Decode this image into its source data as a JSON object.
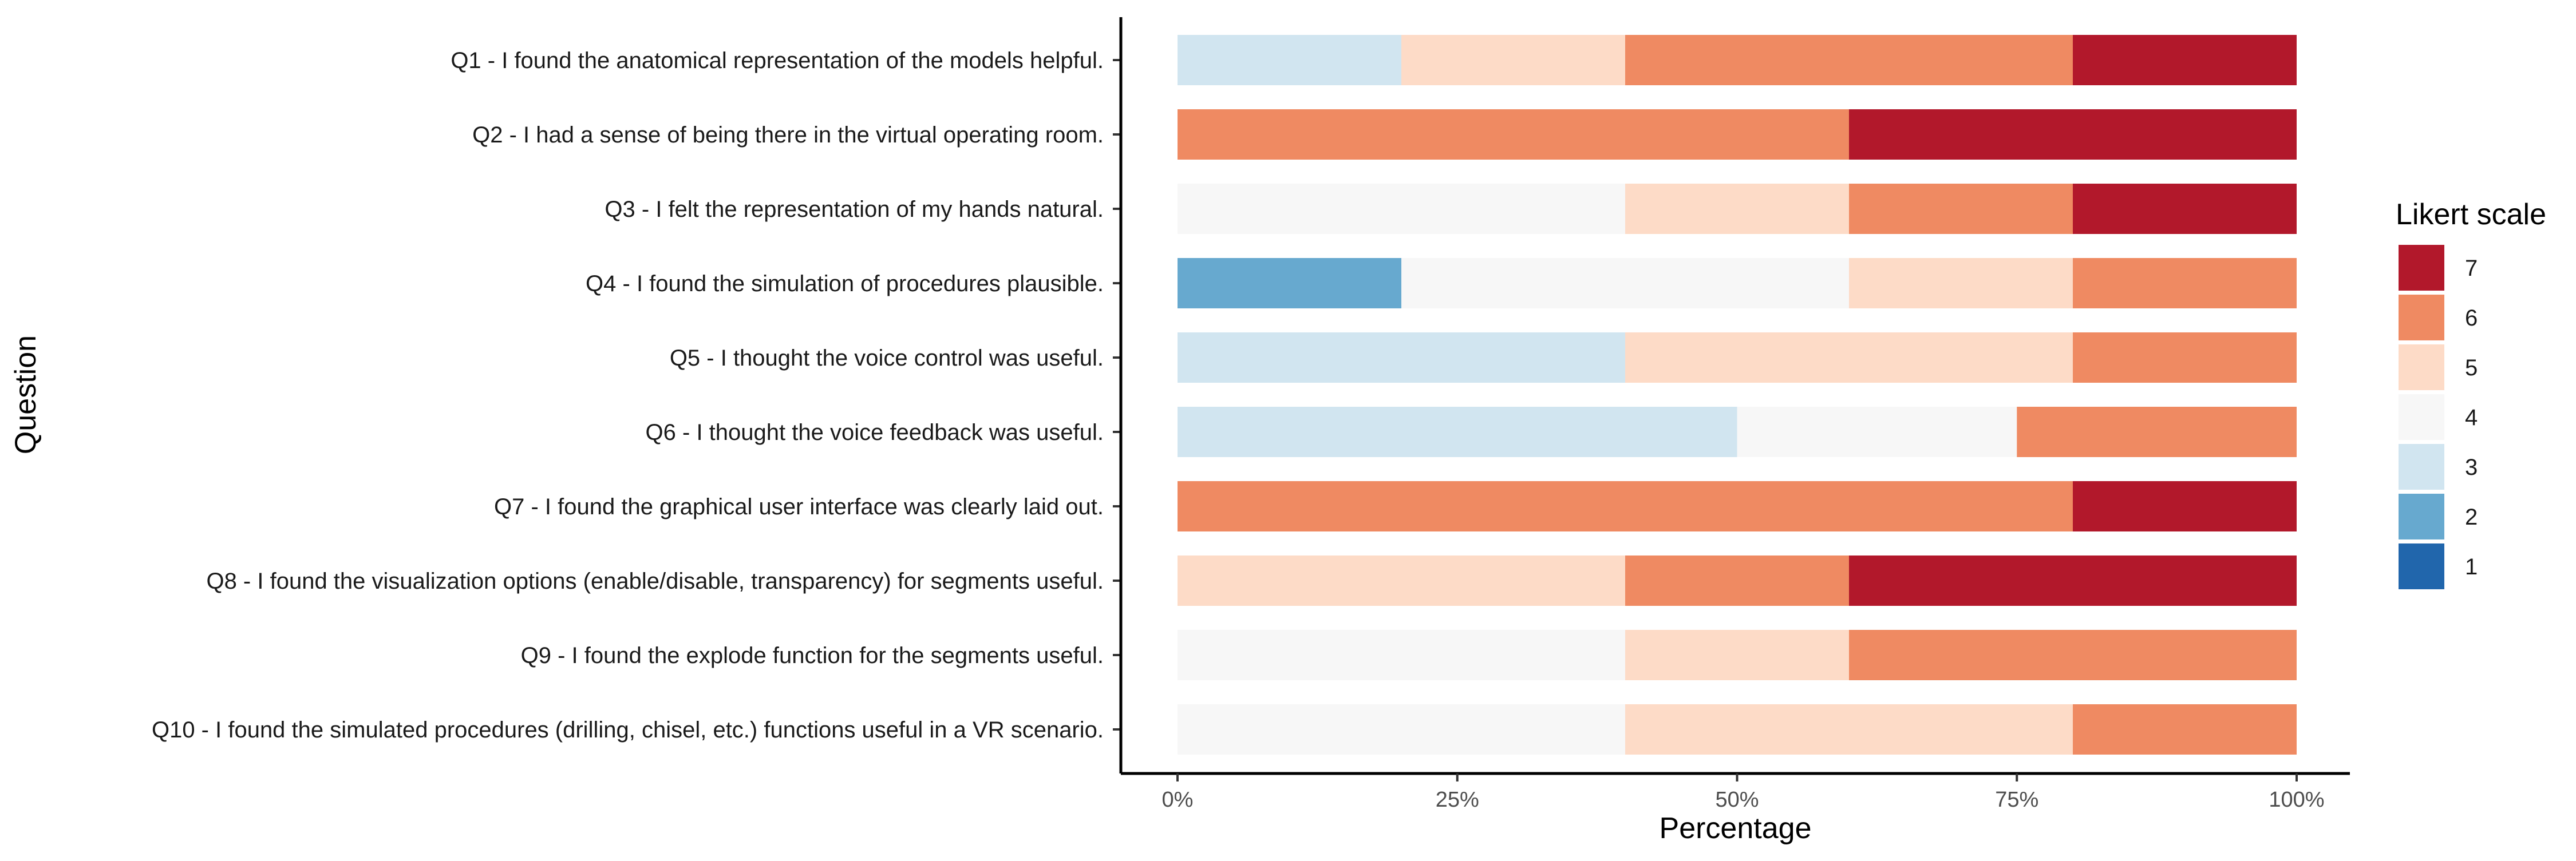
{
  "chart_data": {
    "type": "bar",
    "orientation": "horizontal",
    "stacked": true,
    "xlabel": "Percentage",
    "ylabel": "Question",
    "xlim": [
      0,
      100
    ],
    "xticks": [
      0,
      25,
      50,
      75,
      100
    ],
    "xtick_labels": [
      "0%",
      "25%",
      "50%",
      "75%",
      "100%"
    ],
    "grid": false,
    "legend": {
      "title": "Likert scale",
      "position": "right",
      "entries": [
        {
          "label": "7",
          "color": "#b2182b"
        },
        {
          "label": "6",
          "color": "#ef8a62"
        },
        {
          "label": "5",
          "color": "#fddbc7"
        },
        {
          "label": "4",
          "color": "#f7f7f7"
        },
        {
          "label": "3",
          "color": "#d1e5f0"
        },
        {
          "label": "2",
          "color": "#67a9cf"
        },
        {
          "label": "1",
          "color": "#2166ac"
        }
      ]
    },
    "categories": [
      "Q1 - I found the anatomical representation of the models helpful.",
      "Q2 - I had a sense of being there in the virtual operating room.",
      "Q3 - I felt the representation of my hands natural.",
      "Q4 - I found the simulation of procedures plausible.",
      "Q5 - I thought the voice control was useful.",
      "Q6 - I thought the voice feedback was useful.",
      "Q7 - I found the graphical user interface was clearly laid out.",
      "Q8 - I found the visualization options (enable/disable, transparency) for segments useful.",
      "Q9 - I found the explode function for the segments useful.",
      "Q10 - I found the simulated procedures (drilling, chisel, etc.) functions useful in a VR scenario."
    ],
    "series": [
      {
        "name": "1",
        "color": "#2166ac",
        "values": [
          0,
          0,
          0,
          0,
          0,
          0,
          0,
          0,
          0,
          0
        ]
      },
      {
        "name": "2",
        "color": "#67a9cf",
        "values": [
          0,
          0,
          0,
          20,
          0,
          0,
          0,
          0,
          0,
          0
        ]
      },
      {
        "name": "3",
        "color": "#d1e5f0",
        "values": [
          20,
          0,
          0,
          0,
          40,
          50,
          0,
          0,
          0,
          0
        ]
      },
      {
        "name": "4",
        "color": "#f7f7f7",
        "values": [
          0,
          0,
          40,
          40,
          0,
          25,
          0,
          0,
          40,
          40
        ]
      },
      {
        "name": "5",
        "color": "#fddbc7",
        "values": [
          20,
          0,
          20,
          20,
          40,
          0,
          0,
          40,
          20,
          40
        ]
      },
      {
        "name": "6",
        "color": "#ef8a62",
        "values": [
          40,
          60,
          20,
          20,
          20,
          25,
          80,
          20,
          40,
          20
        ]
      },
      {
        "name": "7",
        "color": "#b2182b",
        "values": [
          20,
          40,
          20,
          0,
          0,
          0,
          20,
          40,
          0,
          0
        ]
      }
    ]
  }
}
